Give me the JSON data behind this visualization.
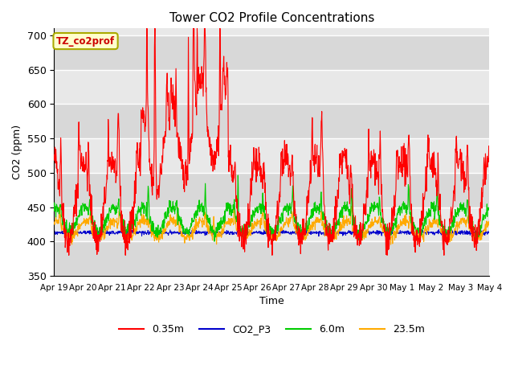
{
  "title": "Tower CO2 Profile Concentrations",
  "ylabel": "CO2 (ppm)",
  "xlabel": "Time",
  "tag_label": "TZ_co2prof",
  "tag_facecolor": "#ffffcc",
  "tag_edgecolor": "#aaaa00",
  "tag_textcolor": "#cc0000",
  "background_color": "#ffffff",
  "axes_facecolor": "#e8e8e8",
  "grid_color": "#ffffff",
  "band_colors": [
    "#d8d8d8",
    "#e8e8e8"
  ],
  "ylim": [
    350,
    710
  ],
  "yticks": [
    350,
    400,
    450,
    500,
    550,
    600,
    650,
    700
  ],
  "colors": {
    "0.35m": "#ff0000",
    "CO2_P3": "#0000cc",
    "6.0m": "#00cc00",
    "23.5m": "#ffaa00"
  },
  "n_days": 15,
  "seed": 42
}
